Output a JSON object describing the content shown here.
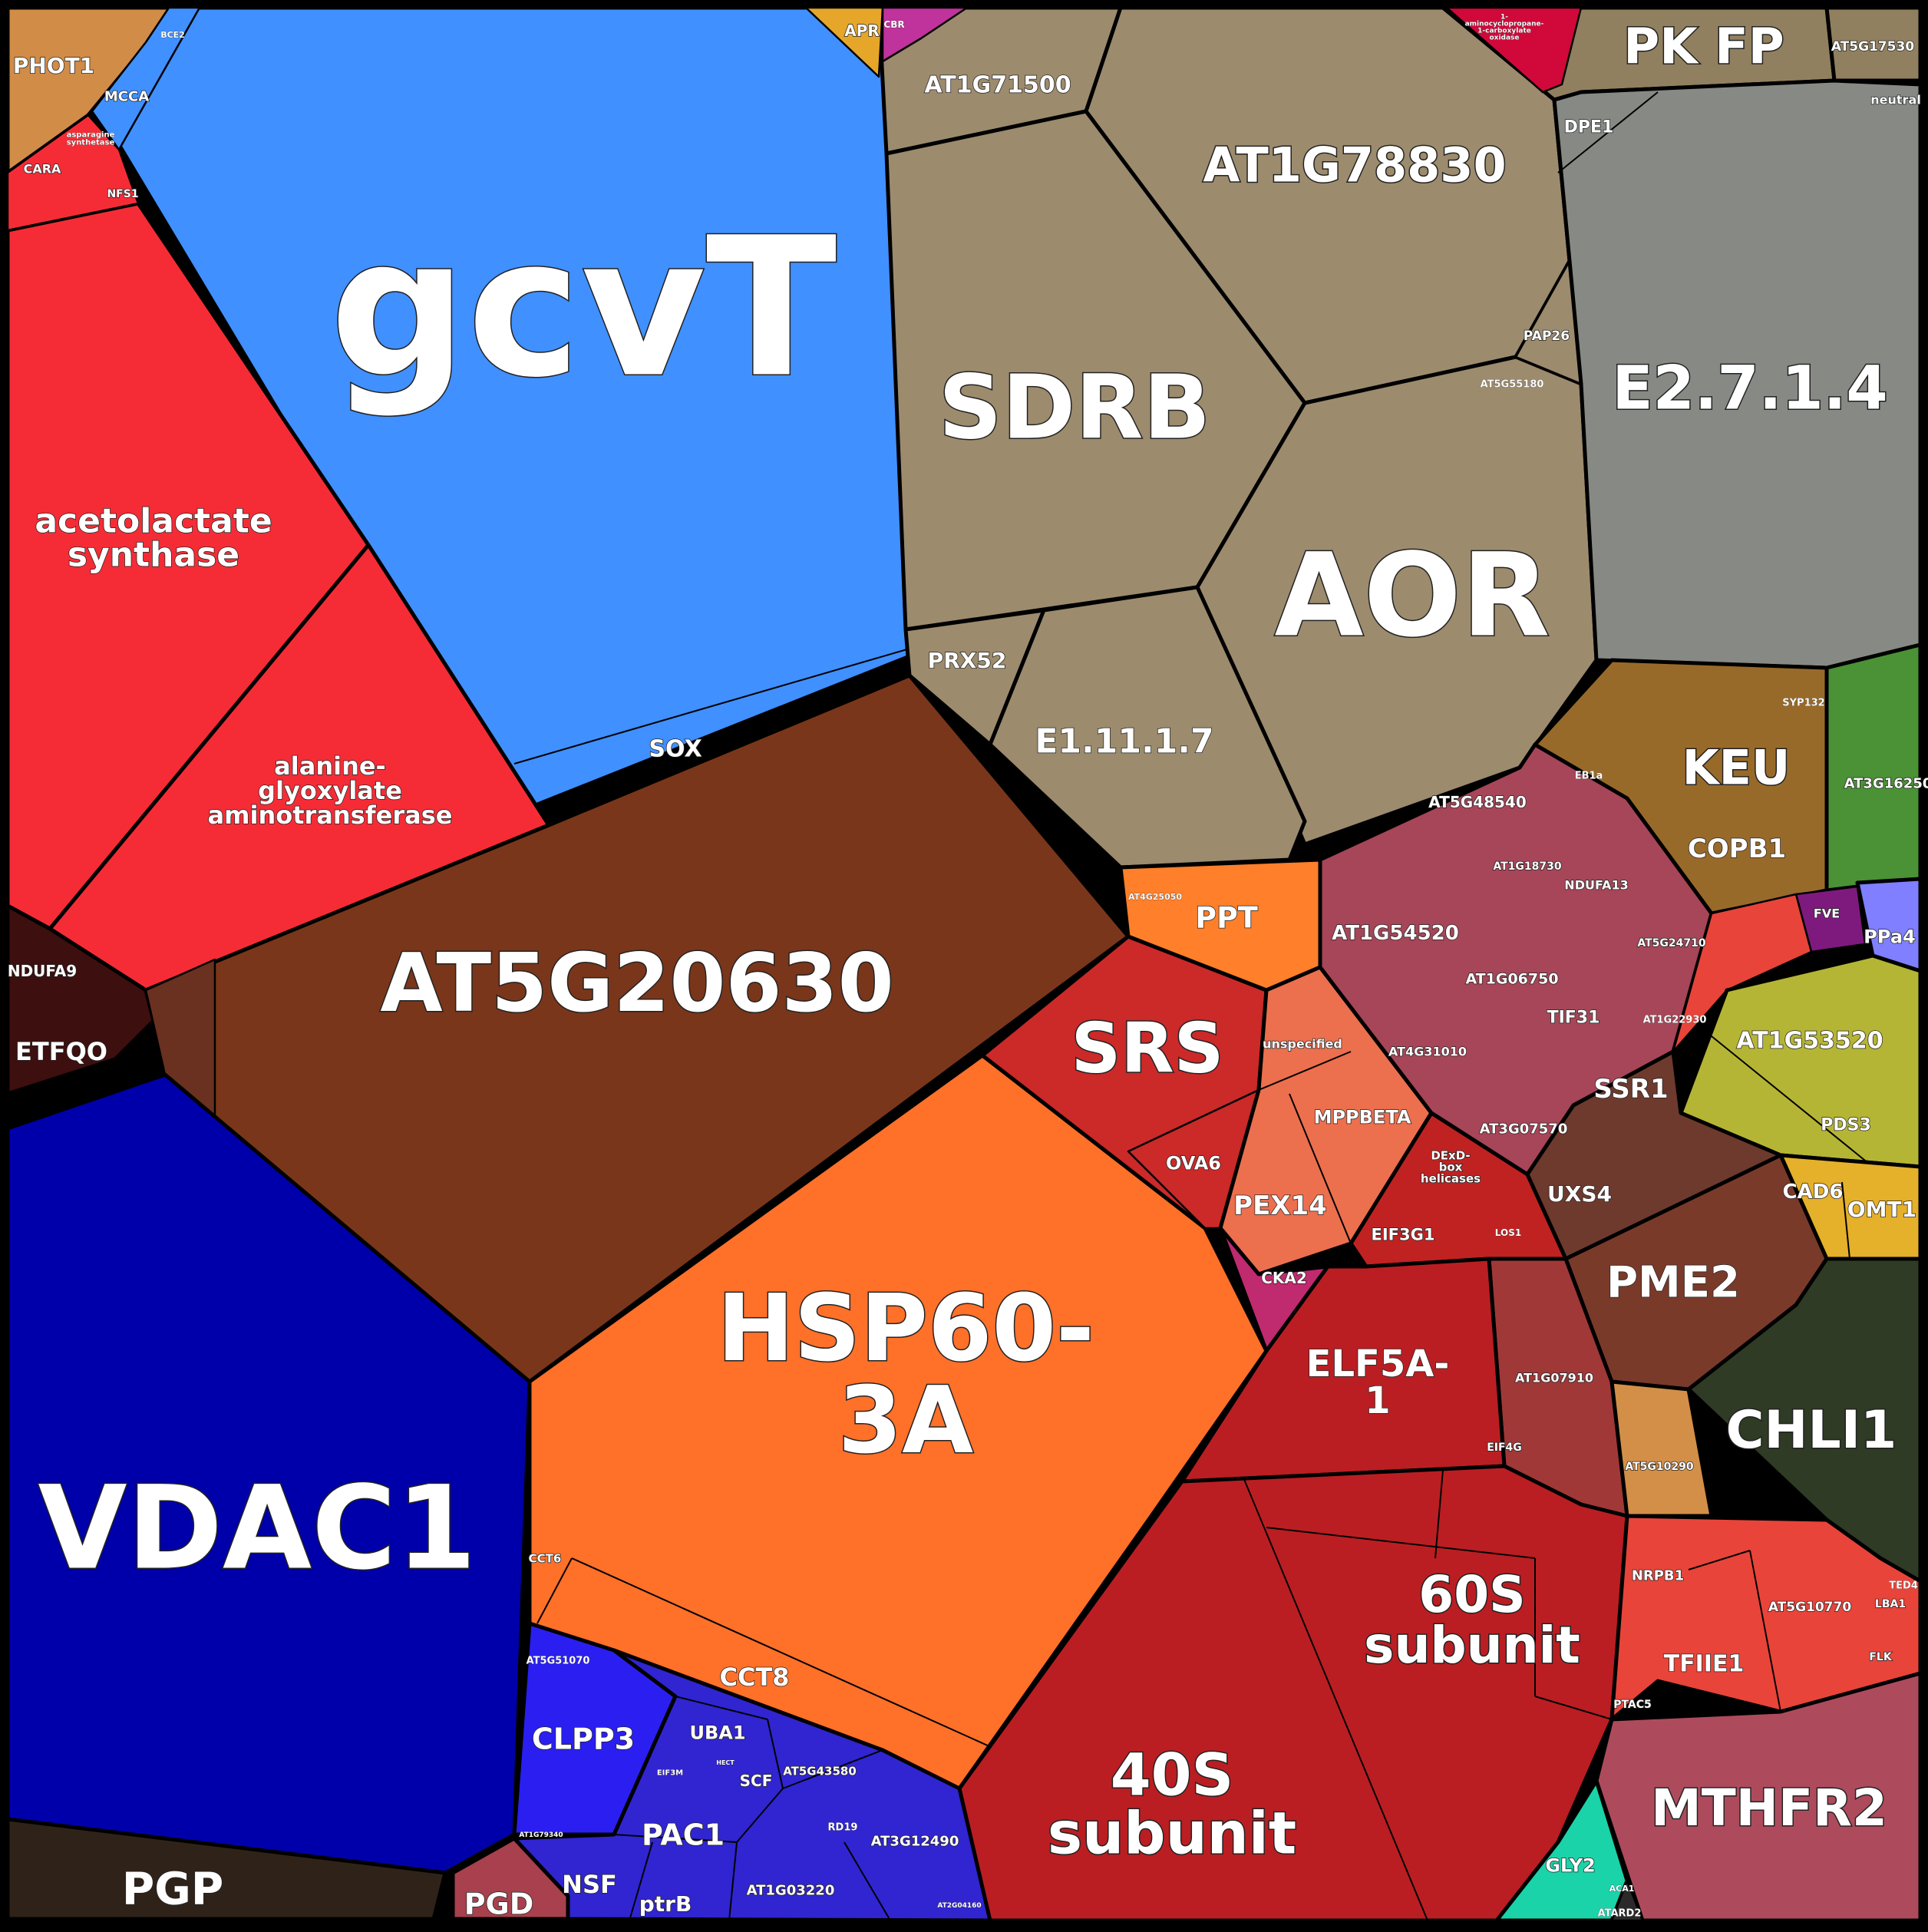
{
  "chart_data": {
    "type": "voronoi-treemap",
    "title": "",
    "cells": [
      {
        "label": "gcvT",
        "color": "#4090ff"
      },
      {
        "label": "SOX",
        "color": "#4090ff"
      },
      {
        "label": "acetolactate\nsynthase",
        "color": "#f52c36"
      },
      {
        "label": "alanine-\nglyoxylate\naminotransferase",
        "color": "#f52c36"
      },
      {
        "label": "PHOT1",
        "color": "#d18c48"
      },
      {
        "label": "MCCA",
        "color": "#4090ff"
      },
      {
        "label": "BCE2",
        "color": "#4090ff"
      },
      {
        "label": "CARA",
        "color": "#f52c36"
      },
      {
        "label": "asparagine\nsynthetase",
        "color": "#f52c36"
      },
      {
        "label": "NFS1",
        "color": "#f52c36"
      },
      {
        "label": "AT5G20630",
        "color": "#7a361a"
      },
      {
        "label": "NDUFA9",
        "color": "#3d0f0f"
      },
      {
        "label": "ETFQO",
        "color": "#3d0f0f"
      },
      {
        "label": "VDAC1",
        "color": "#0000aa"
      },
      {
        "label": "PGP",
        "color": "#2f2319"
      },
      {
        "label": "PGD",
        "color": "#a8404d"
      },
      {
        "label": "SDRB",
        "color": "#9c8b6d"
      },
      {
        "label": "AT1G71500",
        "color": "#9c8b6d"
      },
      {
        "label": "AT1G78830",
        "color": "#9c8b6d"
      },
      {
        "label": "PAP26",
        "color": "#9c8b6d"
      },
      {
        "label": "AT5G55180",
        "color": "#9c8b6d"
      },
      {
        "label": "AOR",
        "color": "#9c8b6d"
      },
      {
        "label": "PRX52",
        "color": "#9c8b6d"
      },
      {
        "label": "E1.11.1.7",
        "color": "#9c8b6d"
      },
      {
        "label": "APR",
        "color": "#e5a62a"
      },
      {
        "label": "CBR",
        "color": "#c0329c"
      },
      {
        "label": "PK FP",
        "color": "#91805f"
      },
      {
        "label": "AT5G17530",
        "color": "#91805f"
      },
      {
        "label": "DPE1",
        "color": "#878a84"
      },
      {
        "label": "neutral",
        "color": "#878a84"
      },
      {
        "label": "E2.7.1.4",
        "color": "#878a84"
      },
      {
        "label": "1-\naminocyclopropane-\n1-carboxylate\noxidase",
        "color": "#d0093a"
      },
      {
        "label": "HSP60-\n3A",
        "color": "#ff7029"
      },
      {
        "label": "CCT6",
        "color": "#ff7029"
      },
      {
        "label": "CCT8",
        "color": "#ff7029"
      },
      {
        "label": "SRS",
        "color": "#cc2929"
      },
      {
        "label": "OVA6",
        "color": "#cc2929"
      },
      {
        "label": "PPT",
        "color": "#ff7f2a"
      },
      {
        "label": "AT4G25050",
        "color": "#ff7f2a"
      },
      {
        "label": "unspecified",
        "color": "#ec6f4e"
      },
      {
        "label": "MPPBETA",
        "color": "#ec6f4e"
      },
      {
        "label": "PEX14",
        "color": "#ec6f4e"
      },
      {
        "label": "CKA2",
        "color": "#c02a6e"
      },
      {
        "label": "AT1G54520",
        "color": "#a64658"
      },
      {
        "label": "AT5G48540",
        "color": "#a64658"
      },
      {
        "label": "AT1G18730",
        "color": "#a64658"
      },
      {
        "label": "NDUFA13",
        "color": "#a64658"
      },
      {
        "label": "AT1G06750",
        "color": "#a64658"
      },
      {
        "label": "AT5G24710",
        "color": "#a64658"
      },
      {
        "label": "TIF31",
        "color": "#a64658"
      },
      {
        "label": "AT1G22930",
        "color": "#a64658"
      },
      {
        "label": "AT4G31010",
        "color": "#a64658"
      },
      {
        "label": "SSR1",
        "color": "#a64658"
      },
      {
        "label": "AT3G07570",
        "color": "#a64658"
      },
      {
        "label": "KEU",
        "color": "#986a2a"
      },
      {
        "label": "COPB1",
        "color": "#986a2a"
      },
      {
        "label": "EB1a",
        "color": "#986a2a"
      },
      {
        "label": "SYP132",
        "color": "#986a2a"
      },
      {
        "label": "AT3G16250",
        "color": "#4a9235"
      },
      {
        "label": "FVE",
        "color": "#7e1a7e"
      },
      {
        "label": "PPa4",
        "color": "#7f7fff"
      },
      {
        "label": "AT1G53520",
        "color": "#b5b535"
      },
      {
        "label": "PDS3",
        "color": "#b5b535"
      },
      {
        "label": "UXS4",
        "color": "#6d3a2d"
      },
      {
        "label": "CAD6",
        "color": "#e5b02a"
      },
      {
        "label": "OMT1",
        "color": "#e5b02a"
      },
      {
        "label": "PME2",
        "color": "#7a3a2a"
      },
      {
        "label": "CHLI1",
        "color": "#2f3b24"
      },
      {
        "label": "DExD-\nbox\nhelicases",
        "color": "#c02222"
      },
      {
        "label": "EIF3G1",
        "color": "#c02222"
      },
      {
        "label": "LOS1",
        "color": "#c02222"
      },
      {
        "label": "AT1G07910",
        "color": "#a03838"
      },
      {
        "label": "ELF5A-\n1",
        "color": "#ba1e22"
      },
      {
        "label": "EIF4G",
        "color": "#ba1e22"
      },
      {
        "label": "60S\nsubunit",
        "color": "#ba1e22"
      },
      {
        "label": "40S\nsubunit",
        "color": "#ba1e22"
      },
      {
        "label": "AT5G10290",
        "color": "#d38f48"
      },
      {
        "label": "NRPB1",
        "color": "#e8443a"
      },
      {
        "label": "AT5G10770",
        "color": "#e8443a"
      },
      {
        "label": "TFIIE1",
        "color": "#e8443a"
      },
      {
        "label": "PTAC5",
        "color": "#e8443a"
      },
      {
        "label": "LBA1",
        "color": "#e8443a"
      },
      {
        "label": "TED4",
        "color": "#e8443a"
      },
      {
        "label": "FLK",
        "color": "#e8443a"
      },
      {
        "label": "MTHFR2",
        "color": "#ad4b5d"
      },
      {
        "label": "GLY2",
        "color": "#1ad3a8"
      },
      {
        "label": "ACA1",
        "color": "#2a2a2a"
      },
      {
        "label": "ATARD2",
        "color": "#2a2a2a"
      },
      {
        "label": "CLPP3",
        "color": "#2a1ff0"
      },
      {
        "label": "UBA1",
        "color": "#3025d0"
      },
      {
        "label": "PAC1",
        "color": "#3025d0"
      },
      {
        "label": "SCF",
        "color": "#3025d0"
      },
      {
        "label": "AT5G43580",
        "color": "#3025d0"
      },
      {
        "label": "AT3G12490",
        "color": "#3025d0"
      },
      {
        "label": "NSF",
        "color": "#3025d0"
      },
      {
        "label": "ptrB",
        "color": "#3025d0"
      },
      {
        "label": "AT1G03220",
        "color": "#3025d0"
      },
      {
        "label": "AT5G51070",
        "color": "#2a1ff0"
      },
      {
        "label": "RD19",
        "color": "#3025d0"
      },
      {
        "label": "EIF3M",
        "color": "#3025d0"
      },
      {
        "label": "HECT",
        "color": "#3025d0"
      },
      {
        "label": "AT1G79340",
        "color": "#3025d0"
      },
      {
        "label": "AT2G04160",
        "color": "#3025d0"
      }
    ]
  }
}
